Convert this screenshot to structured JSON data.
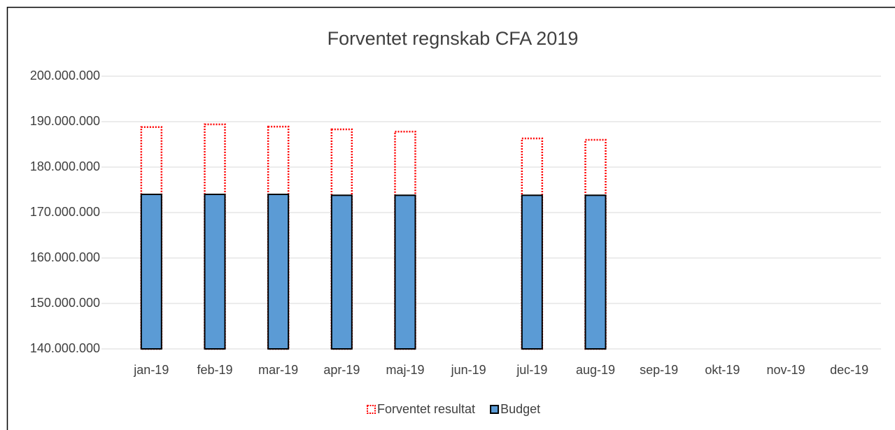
{
  "chart_data": {
    "type": "bar",
    "title": "Forventet regnskab CFA 2019",
    "categories": [
      "jan-19",
      "feb-19",
      "mar-19",
      "apr-19",
      "maj-19",
      "jun-19",
      "jul-19",
      "aug-19",
      "sep-19",
      "okt-19",
      "nov-19",
      "dec-19"
    ],
    "series": [
      {
        "name": "Forventet resultat",
        "color": "#ff0000",
        "values": [
          188800000,
          189400000,
          188900000,
          188300000,
          187800000,
          null,
          186300000,
          186000000,
          null,
          null,
          null,
          null
        ]
      },
      {
        "name": "Budget",
        "color": "#5b9bd5",
        "values": [
          174000000,
          174000000,
          174000000,
          173800000,
          173800000,
          null,
          173800000,
          173800000,
          null,
          null,
          null,
          null
        ]
      }
    ],
    "ylim": [
      140000000,
      200000000
    ],
    "yticks": [
      {
        "value": 140000000,
        "label": "140.000.000"
      },
      {
        "value": 150000000,
        "label": "150.000.000"
      },
      {
        "value": 160000000,
        "label": "160.000.000"
      },
      {
        "value": 170000000,
        "label": "170.000.000"
      },
      {
        "value": 180000000,
        "label": "180.000.000"
      },
      {
        "value": 190000000,
        "label": "190.000.000"
      },
      {
        "value": 200000000,
        "label": "200.000.000"
      }
    ],
    "grid": true,
    "legend": "bottom"
  }
}
